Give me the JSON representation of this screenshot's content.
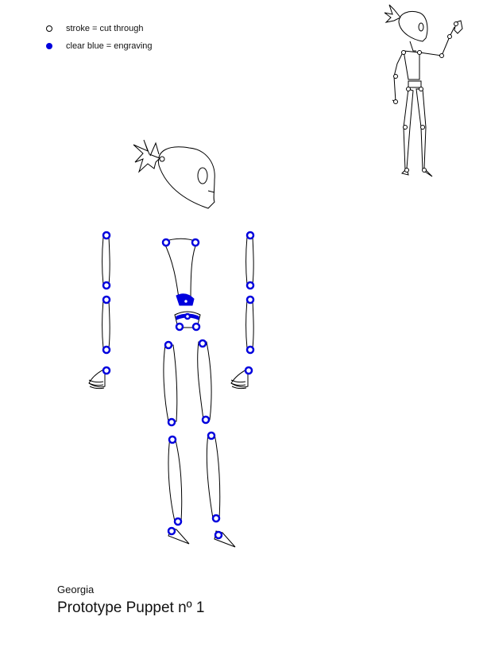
{
  "legend": {
    "cut": {
      "label": "stroke  = cut through",
      "color": "#000000"
    },
    "engrave": {
      "label": "clear blue = engraving",
      "color": "#0000dd"
    }
  },
  "credit": {
    "author": "Georgia",
    "title": "Prototype Puppet nº 1"
  },
  "colors": {
    "stroke": "#000000",
    "engraving": "#0000dd",
    "background": "#ffffff"
  }
}
